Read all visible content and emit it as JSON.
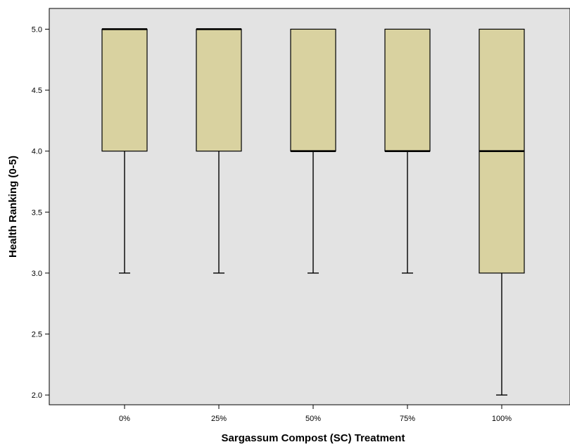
{
  "colors": {
    "plot_background": "#e3e3e3",
    "box_fill": "#d9d2a0",
    "line": "#000000"
  },
  "chart_data": {
    "type": "box",
    "xlabel": "Sargassum Compost (SC) Treatment",
    "ylabel": "Health Ranking (0-5)",
    "ylim": [
      1.92,
      5.17
    ],
    "yticks": [
      2.0,
      2.5,
      3.0,
      3.5,
      4.0,
      4.5,
      5.0
    ],
    "ytick_labels": [
      "2.0",
      "2.5",
      "3.0",
      "3.5",
      "4.0",
      "4.5",
      "5.0"
    ],
    "categories": [
      "0%",
      "25%",
      "50%",
      "75%",
      "100%"
    ],
    "boxes": [
      {
        "category": "0%",
        "min": 3.0,
        "q1": 4.0,
        "median": 5.0,
        "q3": 5.0,
        "max": 5.0
      },
      {
        "category": "25%",
        "min": 3.0,
        "q1": 4.0,
        "median": 5.0,
        "q3": 5.0,
        "max": 5.0
      },
      {
        "category": "50%",
        "min": 3.0,
        "q1": 4.0,
        "median": 4.0,
        "q3": 5.0,
        "max": 5.0
      },
      {
        "category": "75%",
        "min": 3.0,
        "q1": 4.0,
        "median": 4.0,
        "q3": 5.0,
        "max": 5.0
      },
      {
        "category": "100%",
        "min": 2.0,
        "q1": 3.0,
        "median": 4.0,
        "q3": 5.0,
        "max": 5.0
      }
    ],
    "grid": false,
    "legend": "none"
  }
}
